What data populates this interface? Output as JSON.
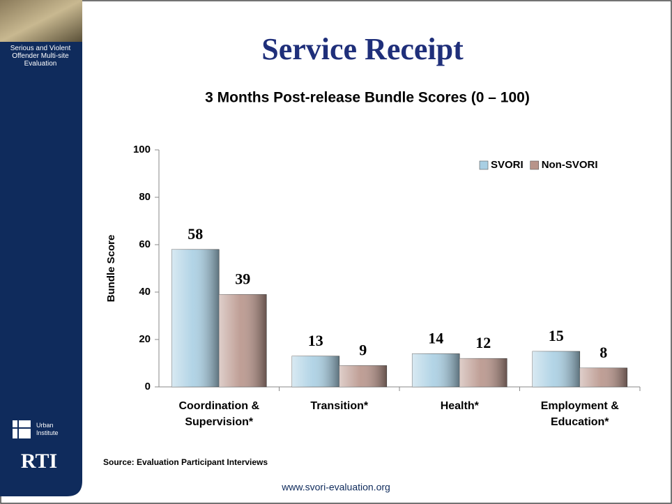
{
  "sidebar": {
    "project": "Serious and Violent Offender Multi-site Evaluation",
    "logo1": "Urban Institute",
    "logo2": "RTI"
  },
  "footer": "www.svori-evaluation.org",
  "chart_data": {
    "type": "bar",
    "title": "Service Receipt",
    "subtitle": "3 Months Post-release Bundle Scores (0 – 100)",
    "y_label": "Bundle Score",
    "source": "Source: Evaluation Participant Interviews",
    "categories": [
      "Coordination & Supervision*",
      "Transition*",
      "Health*",
      "Employment & Education*"
    ],
    "series": [
      {
        "name": "SVORI",
        "color": "#a9cfe3",
        "values": [
          58,
          13,
          14,
          15
        ]
      },
      {
        "name": "Non-SVORI",
        "color": "#b8948a",
        "values": [
          39,
          9,
          12,
          8
        ]
      }
    ],
    "ylim": [
      0,
      100
    ],
    "yticks": [
      0,
      20,
      40,
      60,
      80,
      100
    ],
    "grid": false,
    "legend": "top-right"
  }
}
